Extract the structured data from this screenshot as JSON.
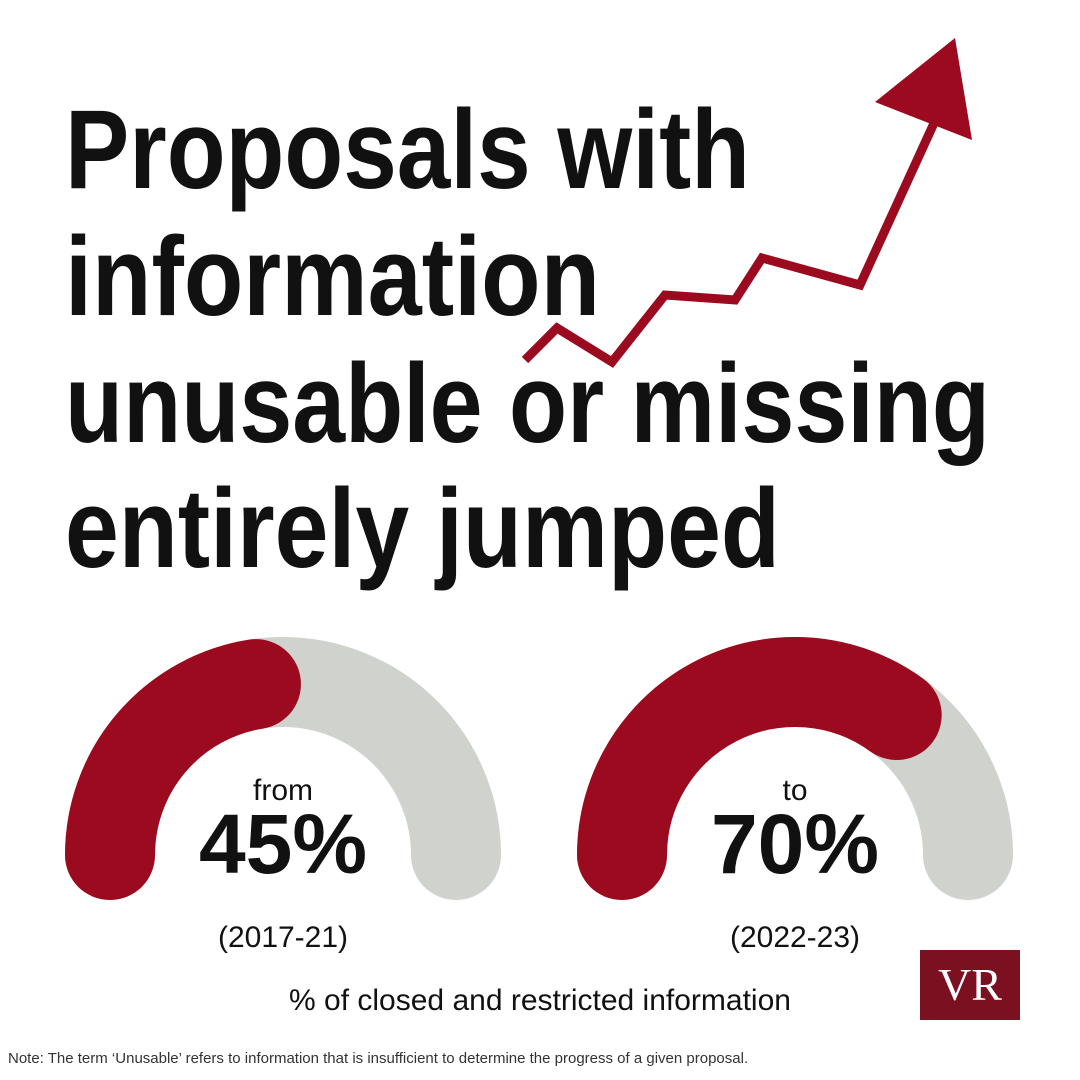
{
  "title_lines": [
    "Proposals with",
    "information",
    "unusable or missing",
    "entirely jumped"
  ],
  "chart_data": [
    {
      "type": "gauge",
      "label": "from",
      "values": [
        45
      ],
      "value_labels": [
        "45%"
      ],
      "period": "(2017-21)",
      "ylim": [
        0,
        100
      ],
      "color": "#9b0a1f",
      "track_color": "#d0d2cd"
    },
    {
      "type": "gauge",
      "label": "to",
      "values": [
        70
      ],
      "value_labels": [
        "70%"
      ],
      "period": "(2022-23)",
      "ylim": [
        0,
        100
      ],
      "color": "#9b0a1f",
      "track_color": "#d0d2cd"
    }
  ],
  "caption": "% of closed and restricted information",
  "logo": "VR",
  "note": "Note: The term ‘Unusable’ refers to information that is insufficient to determine the progress of a given proposal."
}
